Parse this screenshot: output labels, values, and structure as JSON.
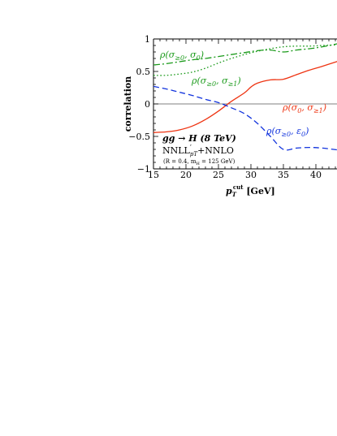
{
  "chart_data": {
    "type": "line",
    "title": "",
    "xlabel": "p_T^cut [GeV]",
    "ylabel": "correlation",
    "xlim": [
      15,
      43.5
    ],
    "ylim": [
      -1,
      1
    ],
    "x_ticks": [
      15,
      20,
      25,
      30,
      35,
      40
    ],
    "y_ticks": [
      -1,
      -0.5,
      0,
      0.5,
      1
    ],
    "x_tick_labels": [
      "15",
      "20",
      "25",
      "30",
      "35",
      "40"
    ],
    "y_tick_labels": [
      "−1",
      "−0.5",
      "0",
      "0.5",
      "1"
    ],
    "zero_line": true,
    "grid": false,
    "annotations": [
      {
        "text": "gg → H (8 TeV)"
      },
      {
        "text": "NNLL′pT+NNLO"
      },
      {
        "text": "(R = 0.4, mH = 125 GeV)"
      }
    ],
    "series": [
      {
        "name": "ρ(σ≥0, σ0)",
        "color": "#1a9a1a",
        "style": "dashdot",
        "x": [
          15,
          17,
          19,
          21,
          23,
          25,
          27,
          29,
          31,
          33,
          35,
          37,
          39,
          41,
          43.5
        ],
        "y": [
          0.6,
          0.62,
          0.65,
          0.68,
          0.7,
          0.73,
          0.76,
          0.79,
          0.82,
          0.83,
          0.8,
          0.83,
          0.85,
          0.88,
          0.93
        ]
      },
      {
        "name": "ρ(σ≥0, σ≥1)",
        "color": "#1a9a1a",
        "style": "dotted",
        "x": [
          15,
          17,
          19,
          21,
          23,
          25,
          27,
          29,
          31,
          33,
          35,
          37,
          39,
          41,
          43.5
        ],
        "y": [
          0.44,
          0.44,
          0.46,
          0.49,
          0.55,
          0.63,
          0.7,
          0.76,
          0.81,
          0.85,
          0.88,
          0.89,
          0.89,
          0.9,
          0.91
        ]
      },
      {
        "name": "ρ(σ0, σ≥1)",
        "color": "#ee3311",
        "style": "solid",
        "x": [
          15,
          17,
          19,
          21,
          23,
          25,
          27,
          29,
          30,
          31,
          33,
          35,
          37,
          39,
          41,
          43.5
        ],
        "y": [
          -0.44,
          -0.43,
          -0.4,
          -0.34,
          -0.24,
          -0.11,
          0.04,
          0.17,
          0.26,
          0.32,
          0.37,
          0.38,
          0.45,
          0.52,
          0.58,
          0.66
        ]
      },
      {
        "name": "ρ(σ≥0, ε0)",
        "color": "#1133dd",
        "style": "dashed",
        "x": [
          15,
          17,
          19,
          21,
          23,
          25,
          27,
          29,
          31,
          33,
          35,
          37,
          39,
          41,
          43.5
        ],
        "y": [
          0.27,
          0.23,
          0.18,
          0.13,
          0.07,
          0.02,
          -0.06,
          -0.15,
          -0.3,
          -0.5,
          -0.7,
          -0.68,
          -0.67,
          -0.68,
          -0.71
        ]
      }
    ]
  },
  "labels": {
    "s1": {
      "main": "ρ(σ",
      "sub1": "≥0",
      "mid": ", σ",
      "sub2": "0",
      "end": ")"
    },
    "s2": {
      "main": "ρ(σ",
      "sub1": "≥0",
      "mid": ", σ",
      "sub2": "≥1",
      "end": ")"
    },
    "s3": {
      "main": "ρ(σ",
      "sub1": "0",
      "mid": ", σ",
      "sub2": "≥1",
      "end": ")"
    },
    "s4": {
      "main": "ρ(σ",
      "sub1": "≥0",
      "mid": ", ε",
      "sub2": "0",
      "end": ")"
    },
    "note1": "gg → H (8 TeV)",
    "note2_a": "NNLL",
    "note2_prime": "′",
    "note2_sub": "pT",
    "note2_b": "+NNLO",
    "note3_a": "(R = 0.4, m",
    "note3_sub": "H",
    "note3_b": " = 125 GeV)",
    "xlabel_p": "p",
    "xlabel_sub": "T",
    "xlabel_sup": "cut",
    "xlabel_unit": " [GeV]",
    "ylabel": "correlation"
  }
}
